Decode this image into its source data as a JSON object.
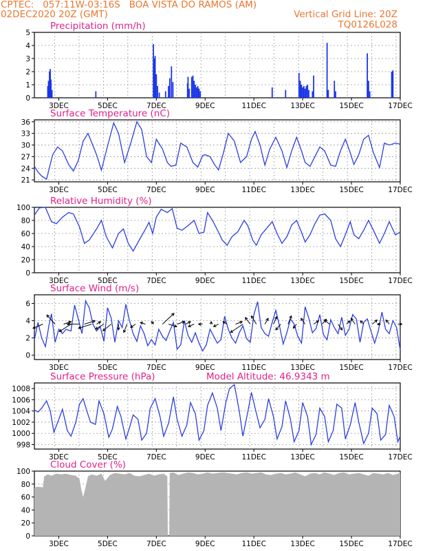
{
  "header": {
    "line1_left": "CPTEC:   057:11W-03:16S   BOA VISTA DO RAMOS (AM)",
    "line2_left": "02DEC2020 20Z (GMT)",
    "line2_right": "Vertical Grid Line: 20Z",
    "line3_right": "TQ0126L028"
  },
  "x_axis": {
    "ticks": [
      "3DEC",
      "5DEC",
      "7DEC",
      "9DEC",
      "11DEC",
      "13DEC",
      "15DEC",
      "17DEC"
    ],
    "tick_days": [
      3,
      5,
      7,
      9,
      11,
      13,
      15,
      17
    ],
    "start_day": 2.0,
    "end_day": 17.0
  },
  "colors": {
    "line": "#2a3ee0",
    "bars": "#1a35e8",
    "cloud": "#b4b4b4",
    "title": "#e0218a",
    "header": "#e8772e"
  },
  "chart_data": [
    {
      "type": "bar",
      "title": "Precipitation (mm/h)",
      "ylim": [
        0,
        5
      ],
      "yticks": [
        "0",
        "1",
        "2",
        "3",
        "4",
        "5"
      ],
      "x_unit": "day of December 2020",
      "x": [
        2.55,
        2.58,
        2.62,
        2.65,
        2.68,
        2.72,
        4.52,
        6.88,
        6.92,
        6.95,
        7.0,
        7.05,
        7.12,
        7.38,
        7.5,
        7.55,
        7.62,
        7.68,
        8.28,
        8.3,
        8.35,
        8.45,
        8.5,
        8.55,
        8.6,
        8.65,
        8.7,
        8.75,
        8.8,
        11.75,
        12.3,
        12.85,
        12.9,
        12.95,
        13.0,
        13.05,
        13.1,
        13.15,
        13.2,
        13.25,
        13.4,
        13.45,
        14.0,
        14.05,
        14.3,
        14.35,
        15.65,
        15.7,
        15.75,
        16.65,
        16.7
      ],
      "values": [
        0.9,
        1.3,
        2.0,
        2.2,
        1.4,
        0.6,
        0.5,
        4.1,
        3.0,
        3.2,
        1.8,
        0.9,
        0.4,
        0.5,
        0.9,
        1.5,
        2.4,
        1.2,
        1.1,
        1.6,
        0.7,
        1.6,
        1.7,
        1.3,
        1.0,
        0.8,
        0.9,
        0.7,
        0.5,
        0.8,
        0.6,
        1.9,
        1.3,
        1.0,
        0.8,
        0.9,
        0.7,
        0.9,
        1.0,
        0.6,
        0.5,
        1.7,
        4.2,
        0.6,
        1.3,
        0.5,
        3.4,
        1.3,
        0.5,
        2.0,
        2.1
      ]
    },
    {
      "type": "line",
      "title": "Surface Temperature (nC)",
      "ylim": [
        20.5,
        36.5
      ],
      "yticks": [
        "21",
        "24",
        "27",
        "30",
        "33",
        "36"
      ],
      "x_unit": "day of December 2020",
      "x": [
        2.0,
        2.15,
        2.3,
        2.5,
        2.75,
        2.95,
        3.15,
        3.4,
        3.6,
        3.8,
        4.0,
        4.2,
        4.55,
        4.75,
        4.95,
        5.25,
        5.45,
        5.7,
        5.95,
        6.2,
        6.4,
        6.6,
        6.8,
        7.0,
        7.25,
        7.45,
        7.6,
        7.8,
        8.0,
        8.25,
        8.5,
        8.7,
        8.9,
        9.0,
        9.2,
        9.4,
        9.55,
        9.75,
        9.95,
        10.2,
        10.45,
        10.7,
        10.9,
        11.05,
        11.25,
        11.45,
        11.65,
        11.9,
        12.15,
        12.35,
        12.55,
        12.75,
        12.95,
        13.1,
        13.3,
        13.5,
        13.7,
        13.9,
        14.15,
        14.35,
        14.55,
        14.75,
        14.95,
        15.1,
        15.3,
        15.5,
        15.7,
        15.9,
        16.15,
        16.35,
        16.55,
        16.8,
        17.0
      ],
      "values": [
        24.5,
        23.0,
        22.0,
        21.2,
        27.5,
        29.5,
        28.5,
        25.0,
        23.3,
        26.0,
        31.0,
        33.0,
        27.5,
        23.5,
        28.5,
        35.7,
        33.0,
        25.5,
        30.5,
        36.0,
        34.0,
        27.0,
        25.5,
        31.5,
        29.0,
        25.5,
        24.5,
        24.8,
        30.5,
        29.5,
        25.5,
        24.3,
        27.3,
        27.5,
        27.0,
        24.8,
        23.6,
        28.0,
        33.0,
        31.0,
        25.5,
        27.0,
        31.5,
        33.5,
        30.0,
        24.8,
        29.0,
        32.0,
        28.5,
        24.2,
        28.5,
        32.0,
        28.5,
        25.5,
        24.5,
        27.0,
        29.5,
        28.5,
        24.8,
        24.5,
        28.5,
        31.5,
        28.0,
        25.0,
        27.5,
        31.5,
        32.5,
        28.0,
        24.2,
        30.5,
        30.0,
        30.5,
        30.2
      ]
    },
    {
      "type": "line",
      "title": "Relative Humidity (%)",
      "ylim": [
        0,
        100
      ],
      "yticks": [
        "0",
        "20",
        "40",
        "60",
        "80",
        "100"
      ],
      "x_unit": "day of December 2020",
      "x": [
        2.0,
        2.2,
        2.45,
        2.7,
        2.9,
        3.15,
        3.4,
        3.6,
        3.85,
        4.05,
        4.25,
        4.55,
        4.75,
        4.95,
        5.2,
        5.45,
        5.65,
        5.85,
        6.05,
        6.3,
        6.5,
        6.7,
        6.85,
        7.0,
        7.2,
        7.45,
        7.65,
        7.85,
        8.05,
        8.3,
        8.55,
        8.75,
        8.95,
        9.1,
        9.3,
        9.55,
        9.7,
        9.9,
        10.1,
        10.35,
        10.6,
        10.75,
        10.95,
        11.1,
        11.3,
        11.5,
        11.75,
        11.95,
        12.15,
        12.35,
        12.55,
        12.75,
        12.95,
        13.1,
        13.3,
        13.5,
        13.7,
        13.9,
        14.15,
        14.35,
        14.55,
        14.75,
        14.95,
        15.1,
        15.3,
        15.5,
        15.7,
        15.9,
        16.15,
        16.35,
        16.55,
        16.8,
        17.0
      ],
      "values": [
        88,
        99,
        100,
        78,
        75,
        85,
        92,
        90,
        70,
        45,
        50,
        67,
        80,
        55,
        38,
        60,
        67,
        45,
        33,
        50,
        63,
        77,
        60,
        85,
        97,
        92,
        98,
        68,
        65,
        72,
        80,
        60,
        62,
        92,
        80,
        62,
        50,
        42,
        55,
        63,
        80,
        72,
        50,
        42,
        58,
        67,
        78,
        60,
        45,
        55,
        73,
        80,
        62,
        47,
        58,
        75,
        88,
        90,
        80,
        52,
        40,
        58,
        78,
        58,
        52,
        65,
        80,
        65,
        45,
        60,
        78,
        58,
        62
      ]
    },
    {
      "type": "line",
      "title": "Surface Wind (m/s)",
      "ylim": [
        -0.5,
        7
      ],
      "yticks": [
        "0",
        "2",
        "4",
        "6"
      ],
      "x_unit": "day of December 2020",
      "x": [
        2.0,
        2.15,
        2.3,
        2.45,
        2.6,
        2.7,
        2.85,
        3.0,
        3.15,
        3.3,
        3.5,
        3.65,
        3.8,
        3.95,
        4.1,
        4.25,
        4.4,
        4.55,
        4.7,
        4.85,
        5.0,
        5.15,
        5.3,
        5.45,
        5.6,
        5.75,
        5.9,
        6.05,
        6.2,
        6.35,
        6.5,
        6.65,
        6.8,
        6.95,
        7.1,
        7.25,
        7.4,
        7.55,
        7.7,
        7.85,
        8.0,
        8.15,
        8.3,
        8.45,
        8.6,
        8.75,
        8.9,
        9.05,
        9.2,
        9.35,
        9.5,
        9.65,
        9.8,
        9.95,
        10.1,
        10.25,
        10.4,
        10.55,
        10.7,
        10.85,
        11.0,
        11.15,
        11.3,
        11.45,
        11.6,
        11.75,
        11.9,
        12.05,
        12.2,
        12.35,
        12.5,
        12.65,
        12.8,
        12.95,
        13.1,
        13.25,
        13.4,
        13.55,
        13.7,
        13.85,
        14.0,
        14.15,
        14.3,
        14.45,
        14.6,
        14.75,
        14.9,
        15.05,
        15.2,
        15.35,
        15.5,
        15.65,
        15.8,
        15.95,
        16.1,
        16.25,
        16.4,
        16.55,
        16.7,
        16.85,
        17.0
      ],
      "values": [
        1.8,
        3.8,
        2.0,
        1.0,
        3.5,
        4.8,
        1.5,
        3.0,
        2.5,
        3.0,
        2.8,
        5.8,
        4.2,
        2.5,
        6.3,
        5.5,
        3.6,
        2.8,
        3.3,
        1.6,
        5.5,
        4.3,
        1.5,
        4.0,
        3.2,
        5.9,
        4.0,
        2.5,
        1.6,
        3.4,
        2.5,
        1.1,
        1.8,
        1.2,
        3.0,
        2.2,
        1.7,
        2.8,
        3.8,
        0.7,
        1.2,
        4.0,
        2.3,
        1.5,
        2.6,
        1.4,
        0.5,
        1.2,
        3.0,
        2.2,
        1.4,
        1.8,
        4.5,
        3.0,
        2.0,
        1.4,
        2.6,
        3.4,
        1.9,
        1.5,
        4.7,
        6.2,
        3.2,
        2.5,
        2.2,
        3.8,
        5.2,
        3.4,
        1.3,
        2.6,
        4.2,
        3.6,
        2.2,
        1.4,
        5.6,
        4.3,
        2.6,
        3.1,
        4.7,
        2.4,
        1.8,
        4.1,
        3.2,
        2.5,
        4.4,
        2.3,
        3.0,
        4.7,
        4.2,
        1.5,
        3.8,
        4.2,
        2.8,
        1.4,
        2.8,
        5.0,
        3.0,
        2.5,
        4.0,
        3.2,
        0.6
      ],
      "vectors_x": [
        2.35,
        2.85,
        3.2,
        3.5,
        3.85,
        4.05,
        4.35,
        4.55,
        4.85,
        5.15,
        5.45,
        5.8,
        6.15,
        6.55,
        6.9,
        7.25,
        7.5,
        7.85,
        8.2,
        8.55,
        8.9,
        9.25,
        9.55,
        9.9,
        10.25,
        10.55,
        10.85,
        11.1,
        11.45,
        11.8,
        12.1,
        12.4,
        12.75,
        13.1,
        13.45,
        13.8,
        14.1,
        14.45,
        14.8,
        15.15,
        15.5,
        15.85,
        16.2,
        16.55,
        16.9
      ],
      "vectors_u": [
        -1.2,
        -1.0,
        0.9,
        -1.4,
        -1.5,
        1.3,
        -1.6,
        0.5,
        -1.0,
        -1.0,
        0.0,
        -0.4,
        -0.6,
        -0.6,
        -0.3,
        1.4,
        1.0,
        0.9,
        0.6,
        -0.7,
        -0.5,
        0.0,
        -0.6,
        -0.5,
        0.8,
        -1.5,
        -0.6,
        -0.6,
        0.4,
        0.4,
        -0.6,
        0.4,
        -0.4,
        -0.5,
        0.6,
        0.5,
        -0.6,
        0.5,
        0.4,
        -0.5,
        -0.4,
        0.6,
        -0.4,
        -0.4,
        0.5
      ],
      "vectors_v": [
        -0.5,
        1.1,
        0.3,
        -0.9,
        0.0,
        0.4,
        -0.5,
        0.3,
        -0.6,
        -0.8,
        -0.7,
        -1.0,
        -0.4,
        0.2,
        0.3,
        1.3,
        -0.3,
        0.3,
        0.3,
        -0.3,
        0.0,
        0.3,
        -0.3,
        0.3,
        0.3,
        -1.0,
        0.8,
        1.0,
        0.7,
        0.9,
        -0.7,
        1.0,
        -0.5,
        0.7,
        0.4,
        0.6,
        0.5,
        -0.7,
        0.4,
        0.7,
        0.4,
        0.5,
        0.0,
        0.5,
        0.0
      ]
    },
    {
      "type": "line",
      "title": "Surface Pressure (hPa)",
      "subtitle": "Model Altitude: 46.9343 m",
      "ylim": [
        997.2,
        1009
      ],
      "yticks": [
        "998",
        "1000",
        "1002",
        "1004",
        "1006",
        "1008"
      ],
      "x_unit": "day of December 2020",
      "x": [
        2.0,
        2.15,
        2.3,
        2.5,
        2.65,
        2.8,
        3.0,
        3.15,
        3.35,
        3.5,
        3.7,
        3.85,
        4.0,
        4.15,
        4.3,
        4.5,
        4.65,
        4.85,
        5.05,
        5.2,
        5.4,
        5.55,
        5.75,
        5.9,
        6.05,
        6.25,
        6.4,
        6.6,
        6.75,
        6.95,
        7.15,
        7.3,
        7.5,
        7.7,
        7.85,
        8.05,
        8.25,
        8.4,
        8.6,
        8.75,
        8.95,
        9.1,
        9.3,
        9.5,
        9.65,
        9.85,
        10.0,
        10.2,
        10.4,
        10.55,
        10.75,
        10.9,
        11.05,
        11.25,
        11.45,
        11.6,
        11.8,
        11.95,
        12.15,
        12.3,
        12.5,
        12.65,
        12.85,
        13.0,
        13.2,
        13.35,
        13.55,
        13.7,
        13.9,
        14.05,
        14.25,
        14.4,
        14.6,
        14.75,
        14.95,
        15.15,
        15.3,
        15.5,
        15.7,
        15.85,
        16.05,
        16.2,
        16.4,
        16.55,
        16.75,
        16.9,
        17.0
      ],
      "values": [
        1004.2,
        1003.8,
        1004.5,
        1005.8,
        1004.0,
        1000.2,
        1002.5,
        1004.3,
        1000.5,
        999.5,
        1002.0,
        1005.2,
        1006.2,
        1004.0,
        1002.0,
        1001.6,
        1005.8,
        1003.5,
        999.3,
        1000.8,
        1004.8,
        1003.0,
        999.0,
        1001.0,
        1003.3,
        1002.5,
        998.8,
        1000.0,
        1004.5,
        1006.2,
        1003.0,
        999.5,
        1001.8,
        1006.5,
        1002.5,
        999.5,
        1001.5,
        1005.5,
        1003.5,
        998.8,
        1000.5,
        1005.0,
        1007.2,
        1004.5,
        1000.5,
        1005.5,
        1008.0,
        1008.7,
        1004.0,
        999.5,
        1003.8,
        1007.3,
        1004.5,
        1001.0,
        1002.5,
        1006.2,
        1003.0,
        999.0,
        1001.2,
        1005.8,
        1002.5,
        998.5,
        1000.5,
        1005.5,
        1003.0,
        998.0,
        999.8,
        1004.5,
        1003.0,
        998.5,
        1000.5,
        1005.2,
        1004.5,
        999.0,
        1001.5,
        1005.5,
        1002.0,
        998.2,
        1000.0,
        1004.5,
        1003.5,
        998.8,
        999.8,
        1005.0,
        1003.0,
        998.5,
        999.5
      ]
    },
    {
      "type": "area",
      "title": "Cloud Cover (%)",
      "ylim": [
        0,
        100
      ],
      "yticks": [
        "0",
        "20",
        "40",
        "60",
        "80",
        "100"
      ],
      "x_unit": "day of December 2020",
      "x": [
        2.0,
        2.1,
        2.35,
        2.4,
        2.55,
        2.7,
        2.9,
        3.1,
        3.3,
        3.5,
        3.7,
        3.85,
        3.92,
        4.0,
        4.08,
        4.2,
        4.35,
        4.55,
        4.75,
        4.9,
        5.1,
        5.3,
        5.5,
        5.7,
        5.9,
        6.1,
        6.3,
        6.5,
        6.7,
        6.9,
        7.1,
        7.3,
        7.45,
        7.47,
        7.53,
        7.55,
        7.7,
        7.9,
        8.1,
        8.3,
        8.5,
        8.7,
        8.9,
        9.1,
        9.3,
        9.5,
        9.7,
        9.9,
        10.1,
        10.3,
        10.5,
        10.7,
        10.9,
        11.1,
        11.3,
        11.5,
        11.7,
        11.9,
        12.1,
        12.3,
        12.5,
        12.7,
        12.9,
        13.1,
        13.3,
        13.5,
        13.7,
        13.9,
        14.1,
        14.3,
        14.5,
        14.7,
        14.9,
        15.1,
        15.3,
        15.5,
        15.7,
        15.9,
        16.1,
        16.3,
        16.5,
        16.7,
        16.9,
        17.0
      ],
      "values": [
        74,
        76,
        75,
        92,
        95,
        93,
        96,
        95,
        96,
        94,
        93,
        88,
        72,
        60,
        72,
        92,
        95,
        93,
        96,
        85,
        94,
        97,
        96,
        95,
        97,
        93,
        92,
        94,
        96,
        93,
        95,
        96,
        92,
        0,
        0,
        97,
        98,
        94,
        96,
        98,
        97,
        95,
        96,
        98,
        96,
        97,
        98,
        97,
        96,
        95,
        97,
        98,
        96,
        97,
        98,
        95,
        94,
        96,
        97,
        95,
        96,
        98,
        95,
        92,
        96,
        97,
        95,
        98,
        96,
        94,
        97,
        98,
        95,
        96,
        97,
        95,
        93,
        97,
        96,
        95,
        97,
        94,
        96,
        97
      ]
    }
  ]
}
